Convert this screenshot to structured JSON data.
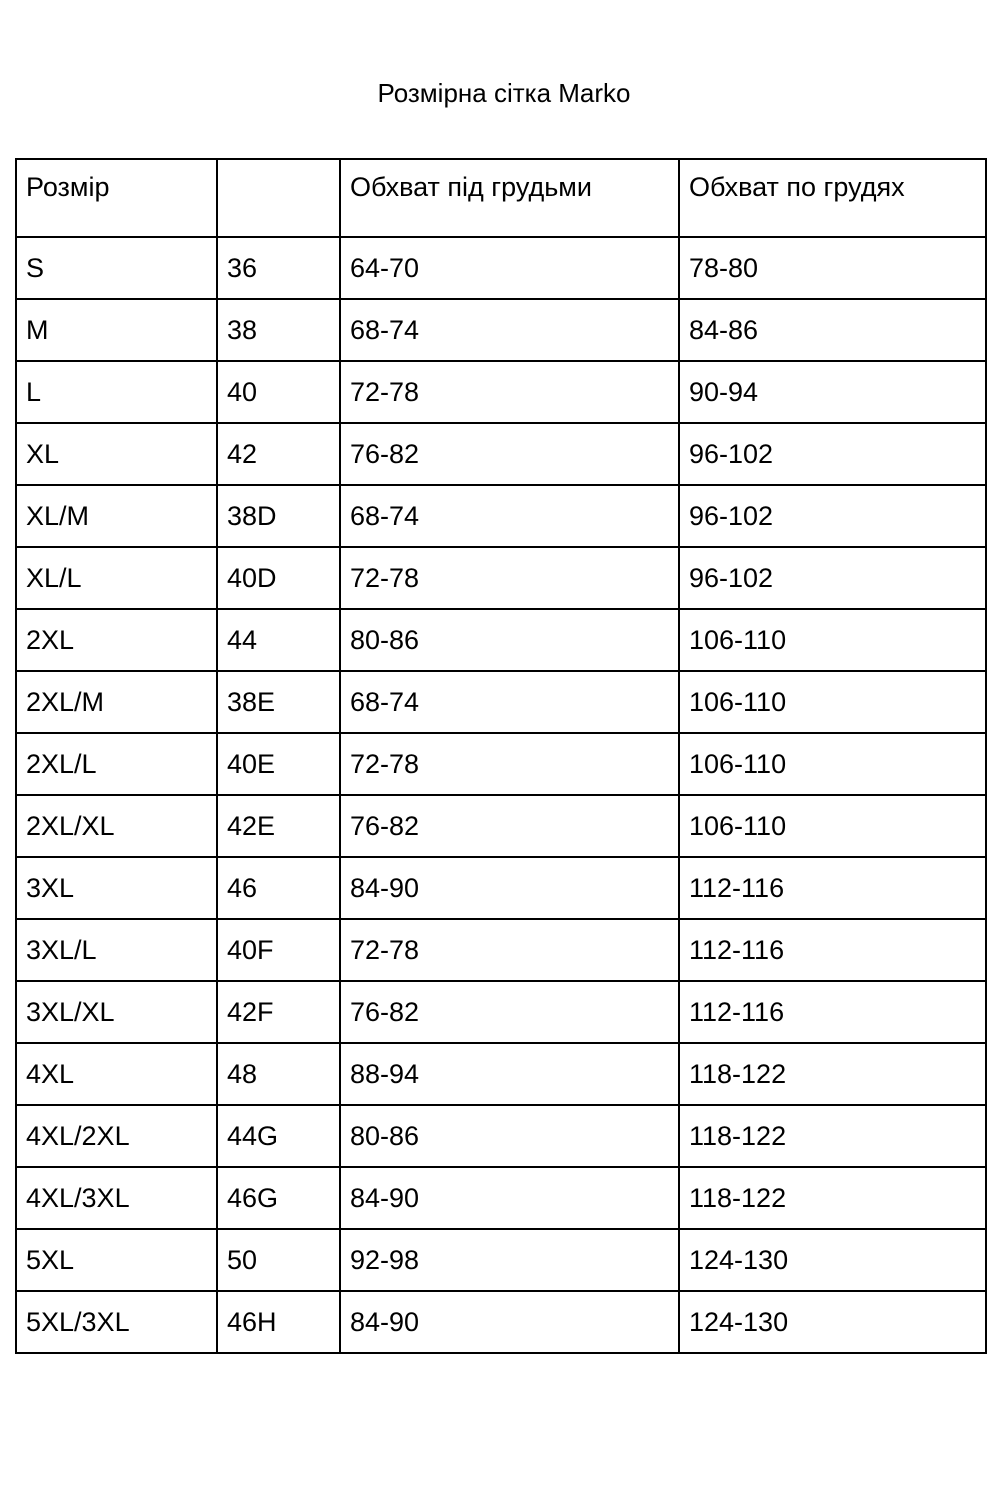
{
  "title": "Розмірна сітка Marko",
  "table": {
    "headers": [
      "Розмір",
      "",
      "Обхват під грудьми",
      "Обхват по грудях"
    ],
    "rows": [
      [
        "S",
        "36",
        "64-70",
        "78-80"
      ],
      [
        "M",
        "38",
        "68-74",
        "84-86"
      ],
      [
        "L",
        "40",
        "72-78",
        "90-94"
      ],
      [
        "XL",
        "42",
        "76-82",
        "96-102"
      ],
      [
        "XL/M",
        "38D",
        "68-74",
        "96-102"
      ],
      [
        "XL/L",
        "40D",
        "72-78",
        "96-102"
      ],
      [
        "2XL",
        "44",
        "80-86",
        "106-110"
      ],
      [
        "2XL/M",
        "38E",
        "68-74",
        "106-110"
      ],
      [
        "2XL/L",
        "40E",
        "72-78",
        "106-110"
      ],
      [
        "2XL/XL",
        "42E",
        "76-82",
        "106-110"
      ],
      [
        "3XL",
        "46",
        "84-90",
        "112-116"
      ],
      [
        "3XL/L",
        "40F",
        "72-78",
        "112-116"
      ],
      [
        "3XL/XL",
        "42F",
        "76-82",
        "112-116"
      ],
      [
        "4XL",
        "48",
        "88-94",
        "118-122"
      ],
      [
        "4XL/2XL",
        "44G",
        "80-86",
        "118-122"
      ],
      [
        "4XL/3XL",
        "46G",
        "84-90",
        "118-122"
      ],
      [
        "5XL",
        "50",
        "92-98",
        "124-130"
      ],
      [
        "5XL/3XL",
        "46H",
        "84-90",
        "124-130"
      ]
    ]
  }
}
